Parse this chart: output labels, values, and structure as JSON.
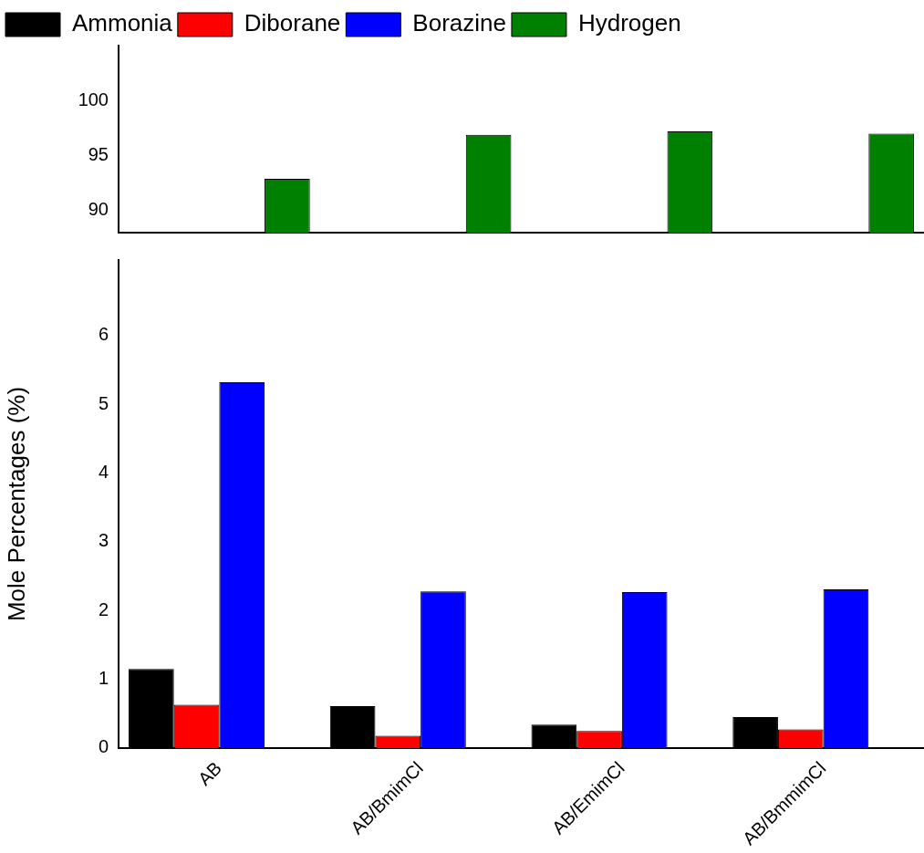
{
  "chart_data": [
    {
      "type": "bar",
      "categories": [
        null,
        null,
        null,
        null
      ],
      "series": [
        {
          "name": "Ammonia",
          "color": "#000000",
          "values": [
            null,
            null,
            null,
            null
          ]
        },
        {
          "name": "Diborane",
          "color": "#ff0000",
          "values": [
            null,
            null,
            null,
            null
          ]
        },
        {
          "name": "Borazine",
          "color": "#0000ff",
          "values": [
            null,
            null,
            null,
            null
          ]
        },
        {
          "name": "Hydrogen",
          "color": "#008000",
          "values": [
            92.9,
            96.9,
            97.2,
            97.0
          ]
        }
      ],
      "ylim": [
        88,
        105
      ],
      "yticks": [
        90,
        95,
        100
      ],
      "legend": "top left",
      "tick_labels": "y",
      "grid": false
    },
    {
      "type": "bar",
      "categories": [
        "AB",
        "AB/BmimCl",
        "AB/EmimCl",
        "AB/BmmimCl"
      ],
      "series": [
        {
          "color": "#000000",
          "values": [
            1.15,
            0.61,
            0.34,
            0.45
          ]
        },
        {
          "color": "#ff0000",
          "values": [
            0.63,
            0.18,
            0.25,
            0.27
          ]
        },
        {
          "color": "#0000ff",
          "values": [
            5.32,
            2.28,
            2.27,
            2.31
          ]
        },
        {
          "color": "#008000",
          "values": [
            null,
            null,
            null,
            null
          ]
        }
      ],
      "ylabel": "Mole Percentages (%)",
      "ylim": [
        0,
        7.1
      ],
      "yticks": [
        0,
        1,
        2,
        3,
        4,
        5,
        6
      ],
      "legend": false,
      "grid": false
    }
  ]
}
